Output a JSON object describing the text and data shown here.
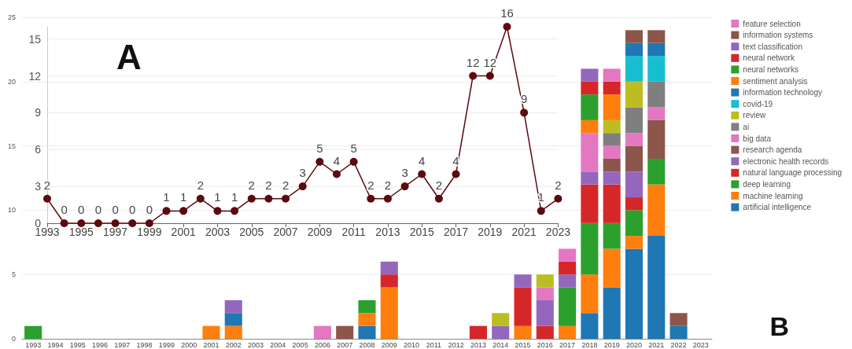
{
  "chart_data": [
    {
      "type": "line",
      "annotations": [
        "A"
      ],
      "x": [
        1993,
        1994,
        1995,
        1996,
        1997,
        1998,
        1999,
        2000,
        2001,
        2002,
        2003,
        2004,
        2005,
        2006,
        2007,
        2008,
        2009,
        2010,
        2011,
        2012,
        2013,
        2014,
        2015,
        2016,
        2017,
        2018,
        2019,
        2020,
        2021,
        2022,
        2023
      ],
      "values": [
        2,
        0,
        0,
        0,
        0,
        0,
        0,
        1,
        1,
        2,
        1,
        1,
        2,
        2,
        2,
        3,
        5,
        4,
        5,
        2,
        2,
        3,
        4,
        2,
        4,
        12,
        12,
        16,
        9,
        1,
        2
      ],
      "color": "#5c0a0f",
      "xlim": [
        1993,
        2023
      ],
      "xticks": [
        1993,
        1995,
        1997,
        1999,
        2001,
        2003,
        2005,
        2007,
        2009,
        2011,
        2013,
        2015,
        2017,
        2019,
        2021,
        2023
      ],
      "ylim": [
        0,
        16
      ],
      "yticks": [
        0,
        3,
        6,
        9,
        12,
        15
      ],
      "grid": "y",
      "marker": "circle",
      "data_labels": true
    },
    {
      "type": "bar",
      "stacked": true,
      "annotations": [
        "B"
      ],
      "categories": [
        "1993",
        "1994",
        "1995",
        "1996",
        "1997",
        "1998",
        "1999",
        "2000",
        "2001",
        "2002",
        "2003",
        "2004",
        "2005",
        "2006",
        "2007",
        "2008",
        "2009",
        "2010",
        "2011",
        "2012",
        "2013",
        "2014",
        "2015",
        "2016",
        "2017",
        "2018",
        "2019",
        "2020",
        "2021",
        "2022",
        "2023"
      ],
      "series": [
        {
          "name": "artificial intelligence",
          "color": "#1f77b4",
          "values": [
            0,
            0,
            0,
            0,
            0,
            0,
            0,
            0,
            0,
            0,
            0,
            0,
            0,
            0,
            0,
            1,
            0,
            0,
            0,
            0,
            0,
            0,
            0,
            0,
            0,
            2,
            4,
            7,
            8,
            1,
            0
          ]
        },
        {
          "name": "machine learning",
          "color": "#ff7f0e",
          "values": [
            0,
            0,
            0,
            0,
            0,
            0,
            0,
            0,
            1,
            1,
            0,
            0,
            0,
            0,
            0,
            1,
            4,
            0,
            0,
            0,
            0,
            0,
            1,
            0,
            1,
            3,
            3,
            1,
            4,
            0,
            0
          ]
        },
        {
          "name": "deep learning",
          "color": "#2ca02c",
          "values": [
            1,
            0,
            0,
            0,
            0,
            0,
            0,
            0,
            0,
            0,
            0,
            0,
            0,
            0,
            0,
            1,
            0,
            0,
            0,
            0,
            0,
            0,
            0,
            0,
            3,
            4,
            2,
            2,
            2,
            0,
            0
          ]
        },
        {
          "name": "natural language processing",
          "color": "#d62728",
          "values": [
            0,
            0,
            0,
            0,
            0,
            0,
            0,
            0,
            0,
            0,
            0,
            0,
            0,
            0,
            0,
            0,
            1,
            0,
            0,
            0,
            1,
            0,
            3,
            1,
            0,
            3,
            3,
            1,
            0,
            0,
            0
          ]
        },
        {
          "name": "electronic health records",
          "color": "#9467bd",
          "values": [
            0,
            0,
            0,
            0,
            0,
            0,
            0,
            0,
            0,
            0,
            0,
            0,
            0,
            0,
            0,
            0,
            1,
            0,
            0,
            0,
            0,
            1,
            1,
            2,
            1,
            1,
            1,
            2,
            0,
            0,
            0
          ]
        },
        {
          "name": "research agenda",
          "color": "#8c564b",
          "values": [
            0,
            0,
            0,
            0,
            0,
            0,
            0,
            0,
            0,
            0,
            0,
            0,
            0,
            0,
            1,
            0,
            0,
            0,
            0,
            0,
            0,
            0,
            0,
            0,
            0,
            0,
            1,
            2,
            3,
            1,
            0
          ]
        },
        {
          "name": "big data",
          "color": "#e377c2",
          "values": [
            0,
            0,
            0,
            0,
            0,
            0,
            0,
            0,
            0,
            0,
            0,
            0,
            0,
            1,
            0,
            0,
            0,
            0,
            0,
            0,
            0,
            0,
            0,
            1,
            0,
            3,
            1,
            1,
            1,
            0,
            0
          ]
        },
        {
          "name": "ai",
          "color": "#7f7f7f",
          "values": [
            0,
            0,
            0,
            0,
            0,
            0,
            0,
            0,
            0,
            0,
            0,
            0,
            0,
            0,
            0,
            0,
            0,
            0,
            0,
            0,
            0,
            0,
            0,
            0,
            0,
            0,
            1,
            2,
            2,
            0,
            0
          ]
        },
        {
          "name": "review",
          "color": "#bcbd22",
          "values": [
            0,
            0,
            0,
            0,
            0,
            0,
            0,
            0,
            0,
            0,
            0,
            0,
            0,
            0,
            0,
            0,
            0,
            0,
            0,
            0,
            0,
            1,
            0,
            1,
            0,
            0,
            1,
            2,
            0,
            0,
            0
          ]
        },
        {
          "name": "covid-19",
          "color": "#17becf",
          "values": [
            0,
            0,
            0,
            0,
            0,
            0,
            0,
            0,
            0,
            0,
            0,
            0,
            0,
            0,
            0,
            0,
            0,
            0,
            0,
            0,
            0,
            0,
            0,
            0,
            0,
            0,
            0,
            2,
            2,
            0,
            0
          ]
        },
        {
          "name": "information technology",
          "color": "#1f77b4",
          "values": [
            0,
            0,
            0,
            0,
            0,
            0,
            0,
            0,
            0,
            1,
            0,
            0,
            0,
            0,
            0,
            0,
            0,
            0,
            0,
            0,
            0,
            0,
            0,
            0,
            0,
            0,
            0,
            1,
            1,
            0,
            0
          ]
        },
        {
          "name": "sentiment analysis",
          "color": "#ff7f0e",
          "values": [
            0,
            0,
            0,
            0,
            0,
            0,
            0,
            0,
            0,
            0,
            0,
            0,
            0,
            0,
            0,
            0,
            0,
            0,
            0,
            0,
            0,
            0,
            0,
            0,
            0,
            1,
            2,
            0,
            0,
            0,
            0
          ]
        },
        {
          "name": "neural networks",
          "color": "#2ca02c",
          "values": [
            0,
            0,
            0,
            0,
            0,
            0,
            0,
            0,
            0,
            0,
            0,
            0,
            0,
            0,
            0,
            0,
            0,
            0,
            0,
            0,
            0,
            0,
            0,
            0,
            0,
            2,
            0,
            0,
            0,
            0,
            0
          ]
        },
        {
          "name": "neural network",
          "color": "#d62728",
          "values": [
            0,
            0,
            0,
            0,
            0,
            0,
            0,
            0,
            0,
            0,
            0,
            0,
            0,
            0,
            0,
            0,
            0,
            0,
            0,
            0,
            0,
            0,
            0,
            0,
            1,
            1,
            1,
            0,
            0,
            0,
            0
          ]
        },
        {
          "name": "text classification",
          "color": "#9467bd",
          "values": [
            0,
            0,
            0,
            0,
            0,
            0,
            0,
            0,
            0,
            1,
            0,
            0,
            0,
            0,
            0,
            0,
            0,
            0,
            0,
            0,
            0,
            0,
            0,
            0,
            0,
            1,
            0,
            0,
            0,
            0,
            0
          ]
        },
        {
          "name": "information systems",
          "color": "#8c564b",
          "values": [
            0,
            0,
            0,
            0,
            0,
            0,
            0,
            0,
            0,
            0,
            0,
            0,
            0,
            0,
            0,
            0,
            0,
            0,
            0,
            0,
            0,
            0,
            0,
            0,
            0,
            0,
            0,
            1,
            1,
            0,
            0
          ]
        },
        {
          "name": "feature selection",
          "color": "#e377c2",
          "values": [
            0,
            0,
            0,
            0,
            0,
            0,
            0,
            0,
            0,
            0,
            0,
            0,
            0,
            0,
            0,
            0,
            0,
            0,
            0,
            0,
            0,
            0,
            0,
            0,
            1,
            0,
            1,
            0,
            0,
            0,
            0
          ]
        }
      ],
      "ylim": [
        0,
        25
      ],
      "yticks": [
        0,
        5,
        10,
        15,
        20,
        25
      ],
      "grid": "y",
      "legend": "right"
    }
  ]
}
